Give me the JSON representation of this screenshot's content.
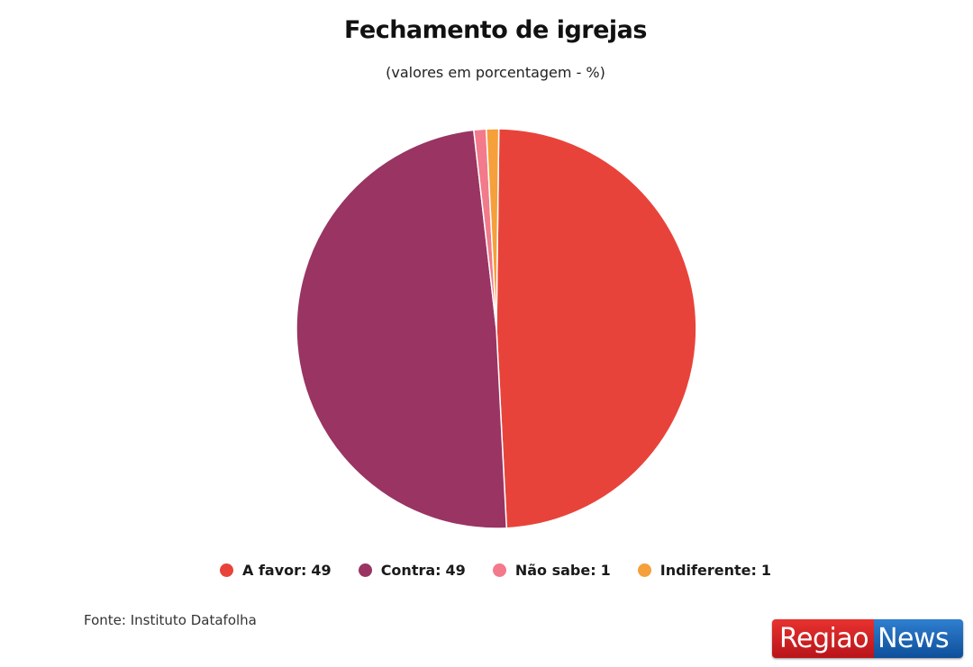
{
  "chart_data": {
    "type": "pie",
    "title": "Fechamento de igrejas",
    "subtitle": "(valores em porcentagem - %)",
    "slices": [
      {
        "label": "A favor",
        "value": 49,
        "color": "#e8433a"
      },
      {
        "label": "Contra",
        "value": 49,
        "color": "#993463"
      },
      {
        "label": "Não sabe",
        "value": 1,
        "color": "#f27a8a"
      },
      {
        "label": "Indiferente",
        "value": 1,
        "color": "#f5a03a"
      }
    ],
    "legend_position": "bottom",
    "source": "Fonte: Instituto Datafolha"
  },
  "legend": [
    {
      "label": "A favor:",
      "value": "49"
    },
    {
      "label": "Contra:",
      "value": "49"
    },
    {
      "label": "Não sabe:",
      "value": "1"
    },
    {
      "label": "Indiferente:",
      "value": "1"
    }
  ],
  "logo": {
    "part1": "Regiao",
    "part2": "News",
    "color1": "#d42226",
    "color2": "#1f6bbd"
  }
}
